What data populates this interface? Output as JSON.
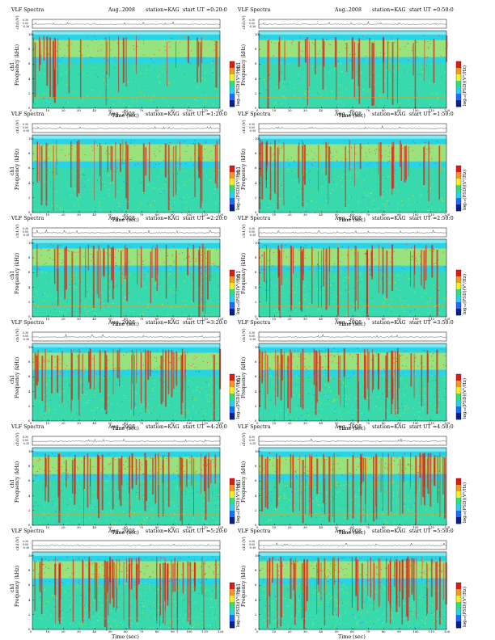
{
  "chart_data": {
    "type": "heatmap",
    "colorbar": {
      "label": "log₁₀(PSD)(V²/Hz)",
      "colors": [
        "#0a1f8f",
        "#1e6cff",
        "#27d4e6",
        "#2fe07a",
        "#f5ef27",
        "#f29a1f",
        "#e01a14"
      ]
    },
    "panels": [
      {
        "title": "VLF Spectra",
        "date": "Aug..2008",
        "station": "station=KAG",
        "start": "start  UT =0:20:0",
        "ylabel_top": "ch1(V)",
        "ylabel_main": "Frequency  (kHz)",
        "ylabel_main2": "ch1",
        "xlabel": "Time  (sec)",
        "xticks": [
          0,
          10,
          20,
          30,
          40,
          50,
          60,
          70,
          80,
          90,
          100,
          110,
          120
        ],
        "yticks": [
          0,
          2,
          4,
          6,
          8,
          10
        ],
        "vticks": [
          "0.30",
          "0.00",
          "-0.30"
        ]
      },
      {
        "title": "VLF Spectra",
        "date": "Aug..2008",
        "station": "station=KAG",
        "start": "start  UT =0:50:0",
        "ylabel_top": "ch1(V)",
        "ylabel_main": "Frequency  (kHz)",
        "ylabel_main2": "ch1",
        "xlabel": "Time  (sec)",
        "xticks": [
          0,
          10,
          20,
          30,
          40,
          50,
          60,
          70,
          80,
          90,
          100,
          110,
          120
        ],
        "yticks": [
          0,
          2,
          4,
          6,
          8,
          10
        ],
        "vticks": [
          "0.30",
          "0.00",
          "-0.30"
        ]
      },
      {
        "title": "VLF Spectra",
        "date": "Aug..2008",
        "station": "station=KAG",
        "start": "start  UT =1:20:0",
        "ylabel_top": "ch1(V)",
        "ylabel_main": "Frequency  (kHz)",
        "ylabel_main2": "ch1",
        "xlabel": "Time  (sec)",
        "xticks": [
          0,
          10,
          20,
          30,
          40,
          50,
          60,
          70,
          80,
          90,
          100,
          110,
          120
        ],
        "yticks": [
          0,
          2,
          4,
          6,
          8,
          10
        ],
        "vticks": [
          "0.30",
          "0.00",
          "-0.30"
        ]
      },
      {
        "title": "VLF Spectra",
        "date": "Aug..2008",
        "station": "station=KAG",
        "start": "start  UT =1:50:0",
        "ylabel_top": "ch1(V)",
        "ylabel_main": "Frequency  (kHz)",
        "ylabel_main2": "ch1",
        "xlabel": "Time  (sec)",
        "xticks": [
          0,
          10,
          20,
          30,
          40,
          50,
          60,
          70,
          80,
          90,
          100,
          110,
          120
        ],
        "yticks": [
          0,
          2,
          4,
          6,
          8,
          10
        ],
        "vticks": [
          "0.30",
          "0.00",
          "-0.30"
        ]
      },
      {
        "title": "VLF Spectra",
        "date": "Aug..2008",
        "station": "station=KAG",
        "start": "start  UT =2:20:0",
        "ylabel_top": "ch1(V)",
        "ylabel_main": "Frequency  (kHz)",
        "ylabel_main2": "ch1",
        "xlabel": "Time  (sec)",
        "xticks": [
          0,
          10,
          20,
          30,
          40,
          50,
          60,
          70,
          80,
          90,
          100,
          110,
          120
        ],
        "yticks": [
          0,
          2,
          4,
          6,
          8,
          10
        ],
        "vticks": [
          "0.30",
          "0.00",
          "-0.30"
        ]
      },
      {
        "title": "VLF Spectra",
        "date": "Aug..2008",
        "station": "station=KAG",
        "start": "start  UT =2:50:0",
        "ylabel_top": "ch1(V)",
        "ylabel_main": "Frequency  (kHz)",
        "ylabel_main2": "ch1",
        "xlabel": "Time  (sec)",
        "xticks": [
          0,
          10,
          20,
          30,
          40,
          50,
          60,
          70,
          80,
          90,
          100,
          110,
          120
        ],
        "yticks": [
          0,
          2,
          4,
          6,
          8,
          10
        ],
        "vticks": [
          "0.30",
          "0.00",
          "-0.30"
        ]
      },
      {
        "title": "VLF Spectra",
        "date": "Aug..2008",
        "station": "station=KAG",
        "start": "start  UT =3:20:0",
        "ylabel_top": "ch1(V)",
        "ylabel_main": "Frequency  (kHz)",
        "ylabel_main2": "ch1",
        "xlabel": "Time  (sec)",
        "xticks": [
          0,
          10,
          20,
          30,
          40,
          50,
          60,
          70,
          80,
          90,
          100,
          110,
          120
        ],
        "yticks": [
          0,
          2,
          4,
          6,
          8,
          10
        ],
        "vticks": [
          "0.30",
          "0.00",
          "-0.30"
        ]
      },
      {
        "title": "VLF Spectra",
        "date": "Aug..2008",
        "station": "station=KAG",
        "start": "start  UT =3:50:0",
        "ylabel_top": "ch1(V)",
        "ylabel_main": "Frequency  (kHz)",
        "ylabel_main2": "ch1",
        "xlabel": "Time  (sec)",
        "xticks": [
          0,
          10,
          20,
          30,
          40,
          50,
          60,
          70,
          80,
          90,
          100,
          110,
          120
        ],
        "yticks": [
          0,
          2,
          4,
          6,
          8,
          10
        ],
        "vticks": [
          "0.30",
          "0.00",
          "-0.30"
        ]
      },
      {
        "title": "VLF Spectra",
        "date": "Aug..2008",
        "station": "station=KAG",
        "start": "start  UT =4:20:0",
        "ylabel_top": "ch1(V)",
        "ylabel_main": "Frequency  (kHz)",
        "ylabel_main2": "ch1",
        "xlabel": "Time  (sec)",
        "xticks": [
          0,
          10,
          20,
          30,
          40,
          50,
          60,
          70,
          80,
          90,
          100,
          110,
          120
        ],
        "yticks": [
          0,
          2,
          4,
          6,
          8,
          10
        ],
        "vticks": [
          "0.30",
          "0.00",
          "-0.30"
        ]
      },
      {
        "title": "VLF Spectra",
        "date": "Aug..2008",
        "station": "station=KAG",
        "start": "start  UT =4:50:0",
        "ylabel_top": "ch1(V)",
        "ylabel_main": "Frequency  (kHz)",
        "ylabel_main2": "ch1",
        "xlabel": "Time  (sec)",
        "xticks": [
          0,
          10,
          20,
          30,
          40,
          50,
          60,
          70,
          80,
          90,
          100,
          110,
          120
        ],
        "yticks": [
          0,
          2,
          4,
          6,
          8,
          10
        ],
        "vticks": [
          "0.30",
          "0.00",
          "-0.30"
        ]
      },
      {
        "title": "VLF Spectra",
        "date": "Aug..2008",
        "station": "station=KAG",
        "start": "start  UT =5:20:0",
        "ylabel_top": "ch1(V)",
        "ylabel_main": "Frequency  (kHz)",
        "ylabel_main2": "ch1",
        "xlabel": "Time  (sec)",
        "xticks": [
          0,
          10,
          20,
          30,
          40,
          50,
          60,
          70,
          80,
          90,
          100,
          110,
          120
        ],
        "yticks": [
          0,
          2,
          4,
          6,
          8,
          10
        ],
        "vticks": [
          "0.30",
          "0.00",
          "-0.30"
        ]
      },
      {
        "title": "VLF Spectra",
        "date": "Aug..2008",
        "station": "station=KAG",
        "start": "start  UT =5:50:0",
        "ylabel_top": "ch1(V)",
        "ylabel_main": "Frequency  (kHz)",
        "ylabel_main2": "ch1",
        "xlabel": "Time  (sec)",
        "xticks": [
          0,
          10,
          20,
          30,
          40,
          50,
          60,
          70,
          80,
          90,
          100,
          110,
          120
        ],
        "yticks": [
          0,
          2,
          4,
          6,
          8,
          10
        ],
        "vticks": [
          "0.30",
          "0.00",
          "-0.30"
        ]
      }
    ]
  }
}
